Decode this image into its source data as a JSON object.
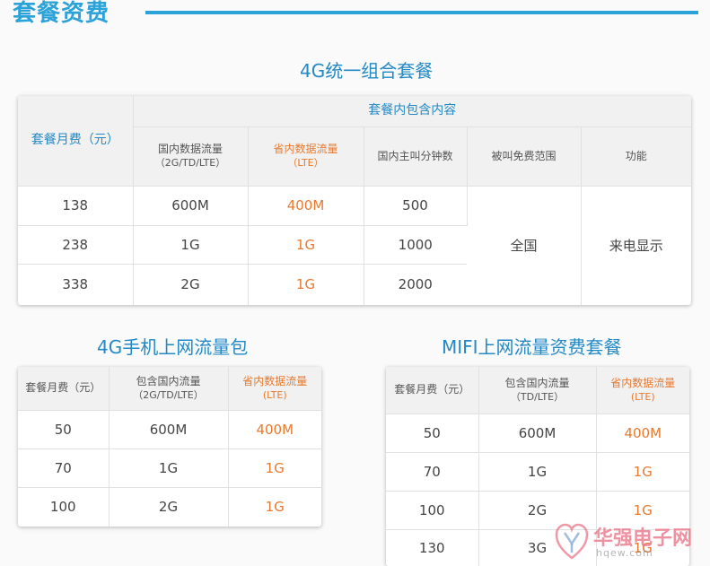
{
  "header": {
    "title": "套餐资费"
  },
  "combo": {
    "title": "4G统一组合套餐",
    "monthly_fee_label": "套餐月费（元）",
    "contents_label": "套餐内包含内容",
    "columns": [
      {
        "label": "国内数据流量",
        "sub": "（2G/TD/LTE）"
      },
      {
        "label": "省内数据流量",
        "sub": "（LTE）"
      },
      {
        "label": "国内主叫分钟数",
        "sub": ""
      },
      {
        "label": "被叫免费范围",
        "sub": ""
      },
      {
        "label": "功能",
        "sub": ""
      }
    ],
    "rows": [
      {
        "fee": "138",
        "national": "600M",
        "provincial": "400M",
        "minutes": "500"
      },
      {
        "fee": "238",
        "national": "1G",
        "provincial": "1G",
        "minutes": "1000"
      },
      {
        "fee": "338",
        "national": "2G",
        "provincial": "1G",
        "minutes": "2000"
      }
    ],
    "free_range": "全国",
    "feature": "来电显示"
  },
  "phone_pack": {
    "title": "4G手机上网流量包",
    "columns": [
      {
        "label": "套餐月费（元）",
        "sub": ""
      },
      {
        "label": "包含国内流量",
        "sub": "（2G/TD/LTE）"
      },
      {
        "label": "省内数据流量",
        "sub": "(LTE)"
      }
    ],
    "rows": [
      {
        "fee": "50",
        "national": "600M",
        "provincial": "400M"
      },
      {
        "fee": "70",
        "national": "1G",
        "provincial": "1G"
      },
      {
        "fee": "100",
        "national": "2G",
        "provincial": "1G"
      }
    ]
  },
  "mifi_pack": {
    "title": "MIFI上网流量资费套餐",
    "columns": [
      {
        "label": "套餐月费（元）",
        "sub": ""
      },
      {
        "label": "包含国内流量",
        "sub": "（TD/LTE）"
      },
      {
        "label": "省内数据流量",
        "sub": "(LTE)"
      }
    ],
    "rows": [
      {
        "fee": "50",
        "national": "600M",
        "provincial": "400M"
      },
      {
        "fee": "70",
        "national": "1G",
        "provincial": "1G"
      },
      {
        "fee": "100",
        "national": "2G",
        "provincial": "1G"
      },
      {
        "fee": "130",
        "national": "3G",
        "provincial": "1G"
      }
    ]
  },
  "watermark": {
    "text": "华强电子网",
    "url": "hqew.com"
  },
  "colors": {
    "accent_blue": "#2ba2d8",
    "title_blue": "#2389c5",
    "orange": "#e8792e"
  }
}
